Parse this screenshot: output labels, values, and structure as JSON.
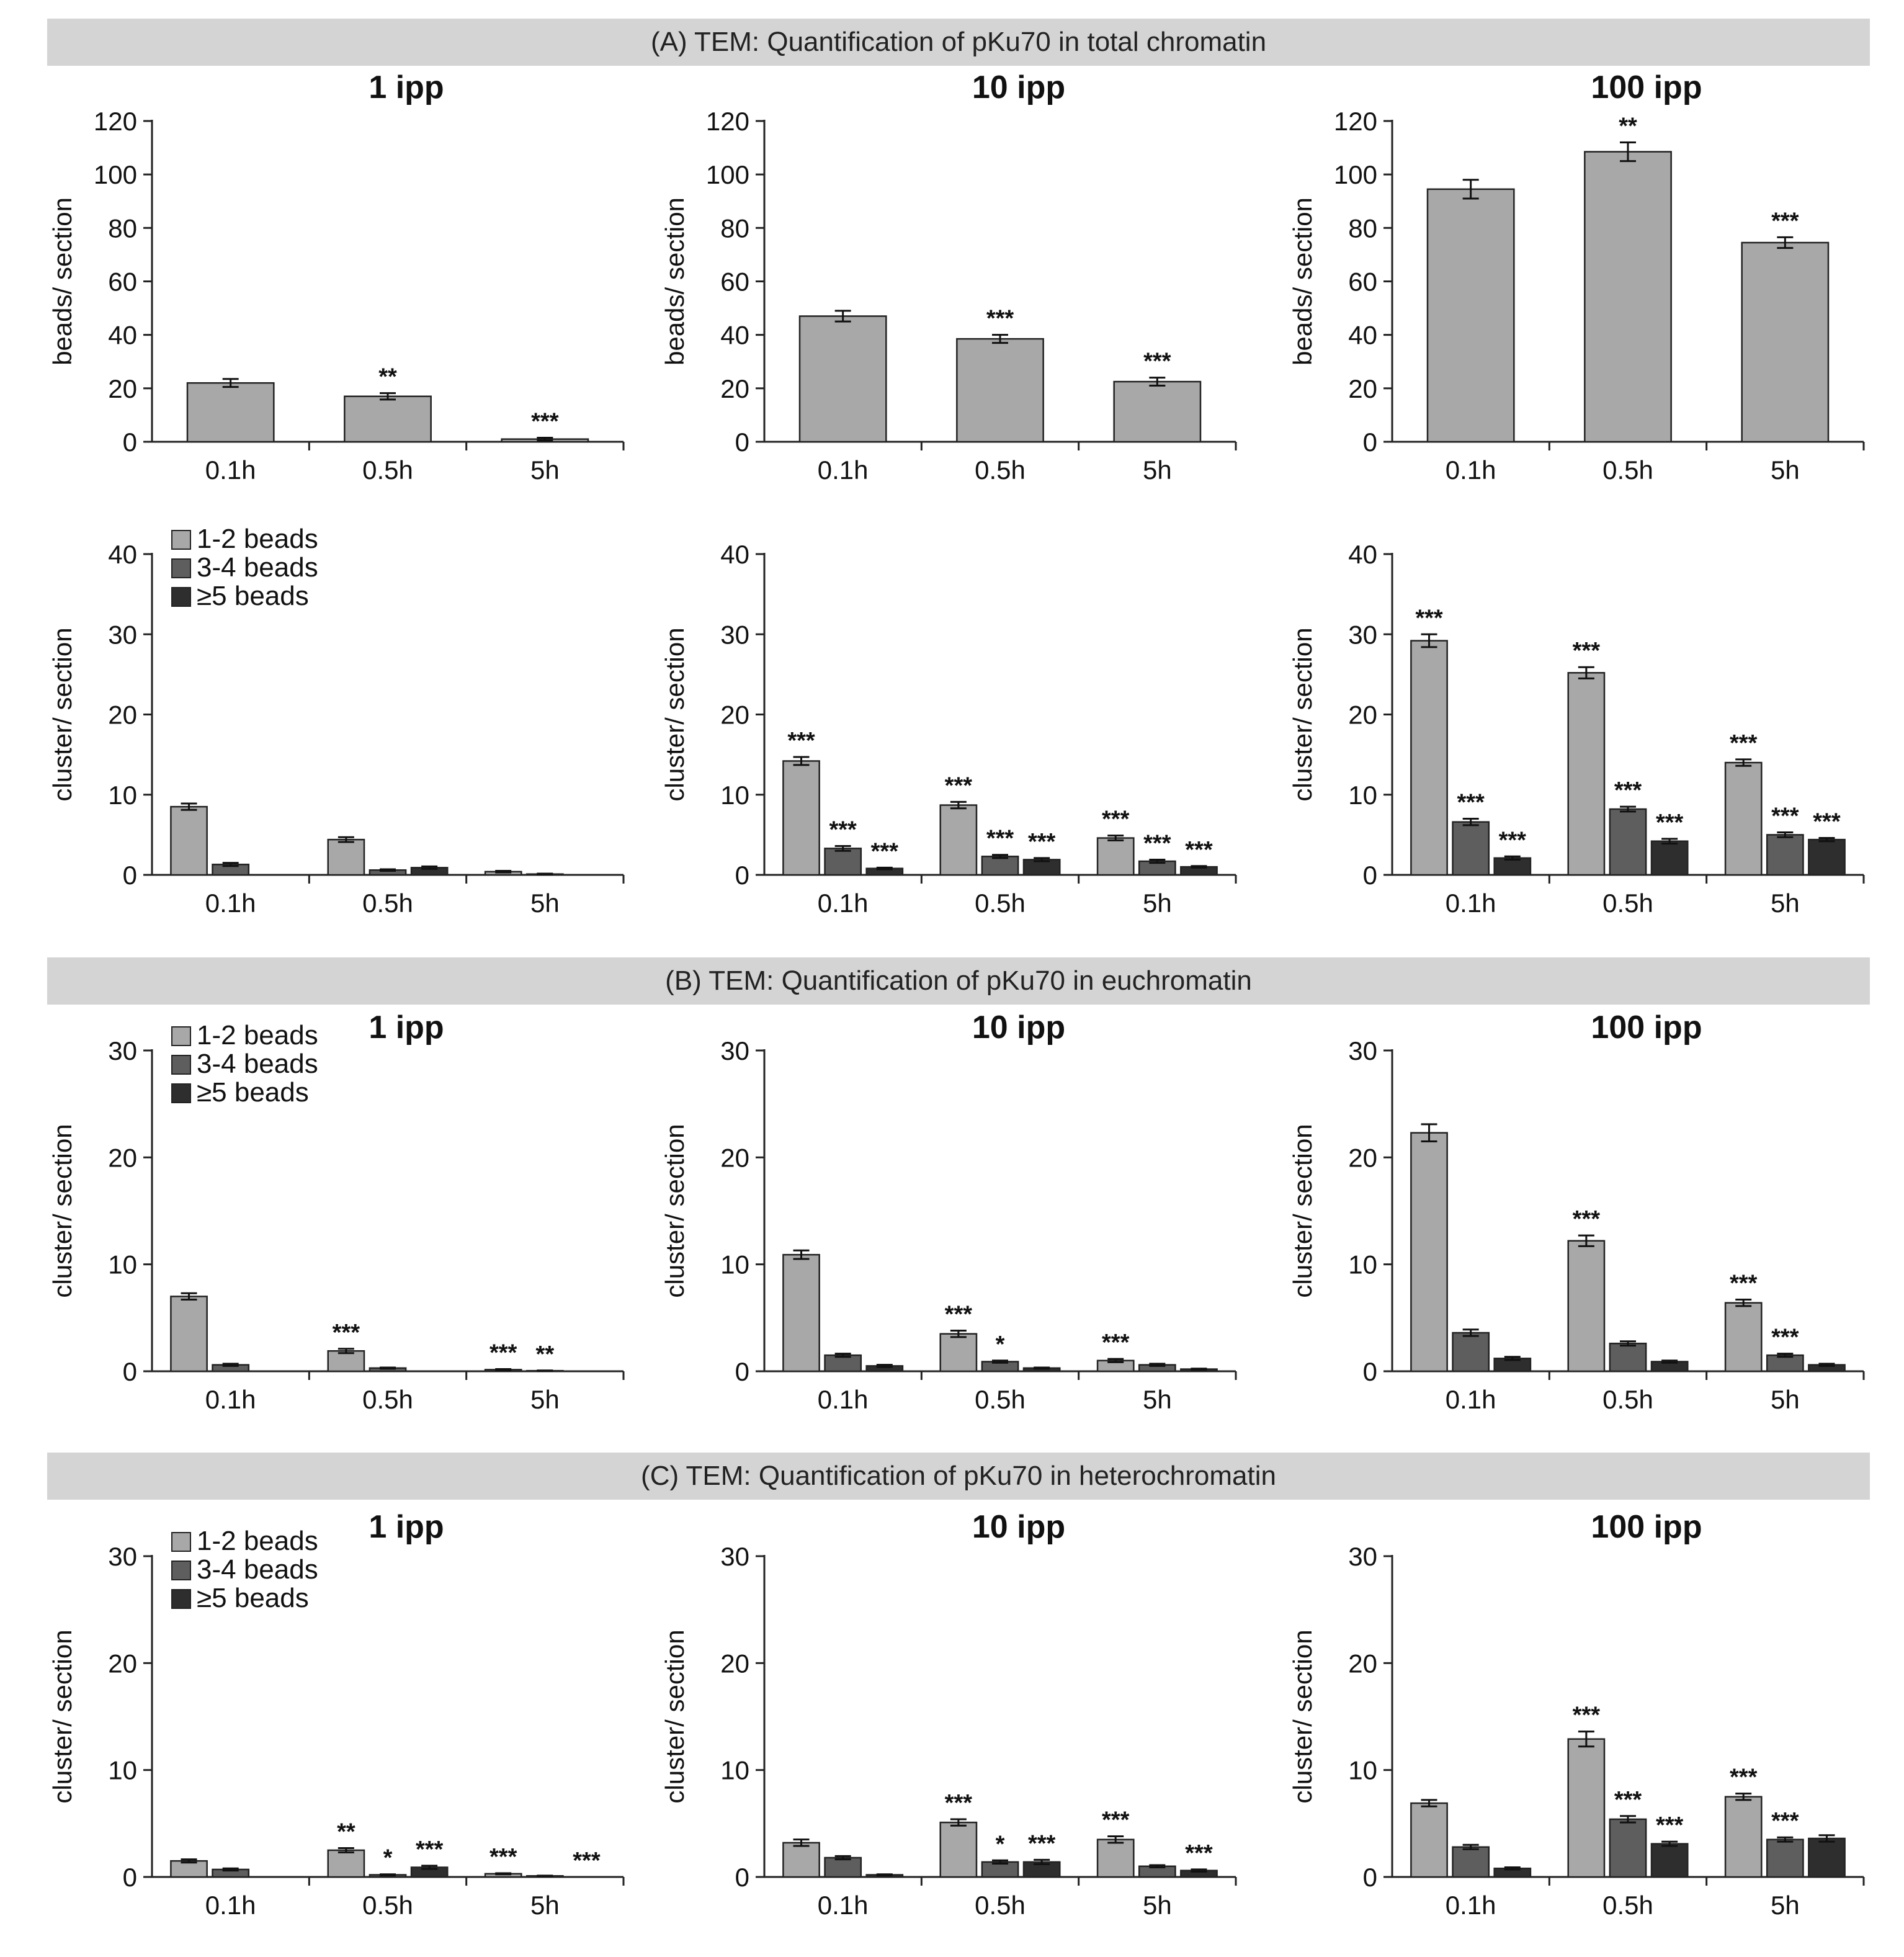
{
  "sections": [
    {
      "title": "(A) TEM: Quantification of pKu70 in total chromatin"
    },
    {
      "title": "(B) TEM: Quantification of pKu70 in euchromatin"
    },
    {
      "title": "(C) TEM: Quantification of pKu70 in heterochromatin"
    }
  ],
  "colors": {
    "bars_single": "#a8a8a8",
    "1-2 beads": "#a8a8a8",
    "3-4 beads": "#5e5e5e",
    "≥5 beads": "#2e2e2e"
  },
  "chart_data": [
    {
      "id": "A-beads-1ipp",
      "type": "bar",
      "title": "1 ipp",
      "ylabel": "beads/ section",
      "ylim": [
        0,
        120
      ],
      "yticks": [
        0,
        20,
        40,
        60,
        80,
        100,
        120
      ],
      "categories": [
        "0.1h",
        "0.5h",
        "5h"
      ],
      "series": [
        {
          "values": [
            22,
            17,
            1
          ],
          "errors": [
            1.5,
            1.2,
            0.5
          ],
          "sig": [
            "",
            "**",
            "***"
          ]
        }
      ]
    },
    {
      "id": "A-beads-10ipp",
      "type": "bar",
      "title": "10 ipp",
      "ylabel": "beads/ section",
      "ylim": [
        0,
        120
      ],
      "yticks": [
        0,
        20,
        40,
        60,
        80,
        100,
        120
      ],
      "categories": [
        "0.1h",
        "0.5h",
        "5h"
      ],
      "series": [
        {
          "values": [
            47,
            38.5,
            22.5
          ],
          "errors": [
            2,
            1.5,
            1.5
          ],
          "sig": [
            "",
            "***",
            "***"
          ]
        }
      ]
    },
    {
      "id": "A-beads-100ipp",
      "type": "bar",
      "title": "100 ipp",
      "ylabel": "beads/ section",
      "ylim": [
        0,
        120
      ],
      "yticks": [
        0,
        20,
        40,
        60,
        80,
        100,
        120
      ],
      "categories": [
        "0.1h",
        "0.5h",
        "5h"
      ],
      "series": [
        {
          "values": [
            94.5,
            108.5,
            74.5
          ],
          "errors": [
            3.5,
            3.5,
            2
          ],
          "sig": [
            "",
            "**",
            "***"
          ]
        }
      ]
    },
    {
      "id": "A-cluster-1ipp",
      "type": "bar",
      "ylabel": "cluster/ section",
      "ylim": [
        0,
        40
      ],
      "yticks": [
        0,
        10,
        20,
        30,
        40
      ],
      "categories": [
        "0.1h",
        "0.5h",
        "5h"
      ],
      "legend": "top-left",
      "series": [
        {
          "name": "1-2 beads",
          "values": [
            8.5,
            4.4,
            0.4
          ],
          "errors": [
            0.4,
            0.3,
            0.1
          ],
          "sig": [
            "",
            "",
            ""
          ]
        },
        {
          "name": "3-4 beads",
          "values": [
            1.3,
            0.6,
            0.1
          ],
          "errors": [
            0.2,
            0.1,
            0.05
          ],
          "sig": [
            "",
            "",
            ""
          ]
        },
        {
          "name": "≥5 beads",
          "values": [
            0,
            0.9,
            0
          ],
          "errors": [
            0,
            0.15,
            0
          ],
          "sig": [
            "",
            "",
            ""
          ]
        }
      ]
    },
    {
      "id": "A-cluster-10ipp",
      "type": "bar",
      "ylabel": "cluster/ section",
      "ylim": [
        0,
        40
      ],
      "yticks": [
        0,
        10,
        20,
        30,
        40
      ],
      "categories": [
        "0.1h",
        "0.5h",
        "5h"
      ],
      "series": [
        {
          "name": "1-2 beads",
          "values": [
            14.2,
            8.7,
            4.6
          ],
          "errors": [
            0.5,
            0.4,
            0.3
          ],
          "sig": [
            "***",
            "***",
            "***"
          ]
        },
        {
          "name": "3-4 beads",
          "values": [
            3.3,
            2.3,
            1.7
          ],
          "errors": [
            0.3,
            0.2,
            0.2
          ],
          "sig": [
            "***",
            "***",
            "***"
          ]
        },
        {
          "name": "≥5 beads",
          "values": [
            0.8,
            1.9,
            1
          ],
          "errors": [
            0.1,
            0.2,
            0.1
          ],
          "sig": [
            "***",
            "***",
            "***"
          ]
        }
      ]
    },
    {
      "id": "A-cluster-100ipp",
      "type": "bar",
      "ylabel": "cluster/ section",
      "ylim": [
        0,
        40
      ],
      "yticks": [
        0,
        10,
        20,
        30,
        40
      ],
      "categories": [
        "0.1h",
        "0.5h",
        "5h"
      ],
      "series": [
        {
          "name": "1-2 beads",
          "values": [
            29.2,
            25.2,
            14
          ],
          "errors": [
            0.8,
            0.7,
            0.4
          ],
          "sig": [
            "***",
            "***",
            "***"
          ]
        },
        {
          "name": "3-4 beads",
          "values": [
            6.6,
            8.2,
            5
          ],
          "errors": [
            0.4,
            0.3,
            0.3
          ],
          "sig": [
            "***",
            "***",
            "***"
          ]
        },
        {
          "name": "≥5 beads",
          "values": [
            2.1,
            4.2,
            4.4
          ],
          "errors": [
            0.2,
            0.3,
            0.2
          ],
          "sig": [
            "***",
            "***",
            "***"
          ]
        }
      ]
    },
    {
      "id": "B-cluster-1ipp",
      "type": "bar",
      "title": "1 ipp",
      "ylabel": "cluster/ section",
      "ylim": [
        0,
        30
      ],
      "yticks": [
        0,
        10,
        20,
        30
      ],
      "categories": [
        "0.1h",
        "0.5h",
        "5h"
      ],
      "legend": "top-left",
      "series": [
        {
          "name": "1-2 beads",
          "values": [
            7,
            1.9,
            0.15
          ],
          "errors": [
            0.3,
            0.2,
            0.05
          ],
          "sig": [
            "",
            "***",
            "***"
          ]
        },
        {
          "name": "3-4 beads",
          "values": [
            0.6,
            0.3,
            0.05
          ],
          "errors": [
            0.1,
            0.05,
            0.02
          ],
          "sig": [
            "",
            "",
            "**"
          ]
        },
        {
          "name": "≥5 beads",
          "values": [
            0,
            0,
            0
          ],
          "errors": [
            0,
            0,
            0
          ],
          "sig": [
            "",
            "",
            ""
          ]
        }
      ]
    },
    {
      "id": "B-cluster-10ipp",
      "type": "bar",
      "title": "10 ipp",
      "ylabel": "cluster/ section",
      "ylim": [
        0,
        30
      ],
      "yticks": [
        0,
        10,
        20,
        30
      ],
      "categories": [
        "0.1h",
        "0.5h",
        "5h"
      ],
      "series": [
        {
          "name": "1-2 beads",
          "values": [
            10.9,
            3.5,
            1
          ],
          "errors": [
            0.4,
            0.3,
            0.15
          ],
          "sig": [
            "",
            "***",
            "***"
          ]
        },
        {
          "name": "3-4 beads",
          "values": [
            1.5,
            0.9,
            0.6
          ],
          "errors": [
            0.15,
            0.1,
            0.1
          ],
          "sig": [
            "",
            "*",
            ""
          ]
        },
        {
          "name": "≥5 beads",
          "values": [
            0.5,
            0.3,
            0.2
          ],
          "errors": [
            0.1,
            0.05,
            0.05
          ],
          "sig": [
            "",
            "",
            ""
          ]
        }
      ]
    },
    {
      "id": "B-cluster-100ipp",
      "type": "bar",
      "title": "100 ipp",
      "ylabel": "cluster/ section",
      "ylim": [
        0,
        30
      ],
      "yticks": [
        0,
        10,
        20,
        30
      ],
      "categories": [
        "0.1h",
        "0.5h",
        "5h"
      ],
      "series": [
        {
          "name": "1-2 beads",
          "values": [
            22.3,
            12.2,
            6.4
          ],
          "errors": [
            0.8,
            0.5,
            0.3
          ],
          "sig": [
            "",
            "***",
            "***"
          ]
        },
        {
          "name": "3-4 beads",
          "values": [
            3.6,
            2.6,
            1.5
          ],
          "errors": [
            0.3,
            0.2,
            0.15
          ],
          "sig": [
            "",
            "",
            "***"
          ]
        },
        {
          "name": "≥5 beads",
          "values": [
            1.2,
            0.9,
            0.6
          ],
          "errors": [
            0.15,
            0.1,
            0.1
          ],
          "sig": [
            "",
            "",
            ""
          ]
        }
      ]
    },
    {
      "id": "C-cluster-1ipp",
      "type": "bar",
      "title": "1 ipp",
      "ylabel": "cluster/ section",
      "ylim": [
        0,
        30
      ],
      "yticks": [
        0,
        10,
        20,
        30
      ],
      "categories": [
        "0.1h",
        "0.5h",
        "5h"
      ],
      "legend": "top-left",
      "series": [
        {
          "name": "1-2 beads",
          "values": [
            1.5,
            2.5,
            0.3
          ],
          "errors": [
            0.15,
            0.2,
            0.05
          ],
          "sig": [
            "",
            "**",
            "***"
          ]
        },
        {
          "name": "3-4 beads",
          "values": [
            0.7,
            0.2,
            0.1
          ],
          "errors": [
            0.1,
            0.05,
            0.02
          ],
          "sig": [
            "",
            "*",
            ""
          ]
        },
        {
          "name": "≥5 beads",
          "values": [
            0,
            0.9,
            0
          ],
          "errors": [
            0,
            0.15,
            0
          ],
          "sig": [
            "",
            "***",
            "***"
          ]
        }
      ]
    },
    {
      "id": "C-cluster-10ipp",
      "type": "bar",
      "title": "10 ipp",
      "ylabel": "cluster/ section",
      "ylim": [
        0,
        30
      ],
      "yticks": [
        0,
        10,
        20,
        30
      ],
      "categories": [
        "0.1h",
        "0.5h",
        "5h"
      ],
      "series": [
        {
          "name": "1-2 beads",
          "values": [
            3.2,
            5.1,
            3.5
          ],
          "errors": [
            0.3,
            0.3,
            0.3
          ],
          "sig": [
            "",
            "***",
            "***"
          ]
        },
        {
          "name": "3-4 beads",
          "values": [
            1.8,
            1.4,
            1
          ],
          "errors": [
            0.15,
            0.15,
            0.1
          ],
          "sig": [
            "",
            "*",
            ""
          ]
        },
        {
          "name": "≥5 beads",
          "values": [
            0.2,
            1.4,
            0.6
          ],
          "errors": [
            0.05,
            0.2,
            0.1
          ],
          "sig": [
            "",
            "***",
            "***"
          ]
        }
      ]
    },
    {
      "id": "C-cluster-100ipp",
      "type": "bar",
      "title": "100 ipp",
      "ylabel": "cluster/ section",
      "ylim": [
        0,
        30
      ],
      "yticks": [
        0,
        10,
        20,
        30
      ],
      "categories": [
        "0.1h",
        "0.5h",
        "5h"
      ],
      "series": [
        {
          "name": "1-2 beads",
          "values": [
            6.9,
            12.9,
            7.5
          ],
          "errors": [
            0.3,
            0.7,
            0.3
          ],
          "sig": [
            "",
            "***",
            "***"
          ]
        },
        {
          "name": "3-4 beads",
          "values": [
            2.8,
            5.4,
            3.5
          ],
          "errors": [
            0.2,
            0.3,
            0.2
          ],
          "sig": [
            "",
            "***",
            "***"
          ]
        },
        {
          "name": "≥5 beads",
          "values": [
            0.8,
            3.1,
            3.6
          ],
          "errors": [
            0.1,
            0.2,
            0.3
          ],
          "sig": [
            "",
            "***",
            ""
          ]
        }
      ]
    }
  ]
}
